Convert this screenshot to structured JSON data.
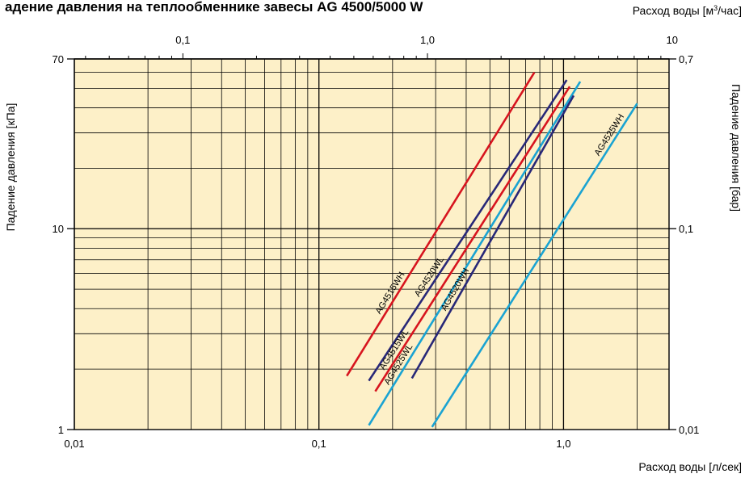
{
  "chart_data": {
    "type": "line",
    "title": "адение давления на теплообменнике завесы AG 4500/5000 W",
    "xlabel_bottom": "Расход воды [л/сек]",
    "xlabel_top": "Расход воды [м³/час]",
    "ylabel_left": "Падение давления [кПа]",
    "ylabel_right": "Падение давления [бар]",
    "x_scale": "log",
    "y_scale": "log",
    "xlim": [
      0.01,
      2.7
    ],
    "ylim": [
      1,
      70
    ],
    "x_top_lim_m3h": [
      0.036,
      9.72
    ],
    "x_ticks_bottom": [
      {
        "v": 0.01,
        "label": "0,01"
      },
      {
        "v": 0.1,
        "label": "0,1"
      },
      {
        "v": 1.0,
        "label": "1,0"
      }
    ],
    "x_ticks_top": [
      {
        "v": 0.1,
        "label": "0,1"
      },
      {
        "v": 1.0,
        "label": "1,0"
      },
      {
        "v": 10,
        "label": "10"
      }
    ],
    "y_ticks_left": [
      {
        "v": 1,
        "label": "1"
      },
      {
        "v": 10,
        "label": "10"
      },
      {
        "v": 70,
        "label": "70"
      }
    ],
    "y_ticks_right": [
      {
        "v": 1,
        "label": "0,01"
      },
      {
        "v": 10,
        "label": "0,1"
      },
      {
        "v": 70,
        "label": "0,7"
      }
    ],
    "grid": true,
    "background_color": "#fdf0c8",
    "series": [
      {
        "name": "AG4515WH",
        "color": "#d7141e",
        "x": [
          0.13,
          0.76
        ],
        "y": [
          1.85,
          60
        ],
        "label_at": 0.195
      },
      {
        "name": "AG4520WL",
        "color": "#282878",
        "x": [
          0.16,
          1.03
        ],
        "y": [
          1.75,
          55
        ],
        "label_at": 0.27
      },
      {
        "name": "AG4515WL",
        "color": "#d7141e",
        "x": [
          0.17,
          1.06
        ],
        "y": [
          1.55,
          51
        ],
        "label_at": 0.062
      },
      {
        "name": "AG4525WL",
        "color": "#1aa3d2",
        "x": [
          0.16,
          1.17
        ],
        "y": [
          1.05,
          54
        ],
        "label_at": 0.11
      },
      {
        "name": "AG4520WH",
        "color": "#282878",
        "x": [
          0.24,
          1.1
        ],
        "y": [
          1.8,
          46
        ],
        "label_at": 0.23
      },
      {
        "name": "AG4525WH",
        "color": "#1aa3d2",
        "x": [
          0.29,
          2.0
        ],
        "y": [
          1.03,
          42
        ],
        "label_at": 0.83
      }
    ]
  }
}
